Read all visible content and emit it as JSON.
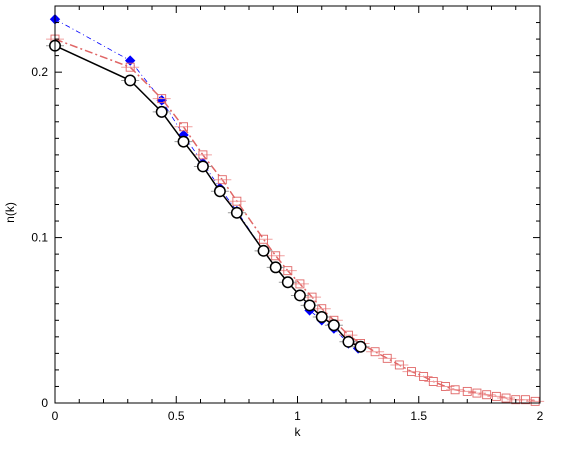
{
  "chart_data": {
    "type": "line",
    "title": "",
    "xlabel": "k",
    "ylabel": "n(k)",
    "xlim": [
      0,
      2
    ],
    "ylim": [
      0,
      0.24
    ],
    "xticks": [
      0,
      0.5,
      1,
      1.5,
      2
    ],
    "xtick_labels": [
      "0",
      "0.5",
      "1",
      "1.5",
      "2"
    ],
    "yticks": [
      0,
      0.1,
      0.2
    ],
    "ytick_labels": [
      "0",
      "0.1",
      "0.2"
    ],
    "grid": false,
    "legend": "none",
    "series": [
      {
        "marker": "diamond",
        "color": "#0000ff",
        "line": "thin-dash-dot",
        "x": [
          0,
          0.31,
          0.44,
          0.53,
          0.61,
          0.68,
          0.75,
          0.86,
          0.91,
          0.96,
          1.01,
          1.05,
          1.1,
          1.15,
          1.21,
          1.25
        ],
        "y": [
          0.232,
          0.207,
          0.183,
          0.162,
          0.145,
          0.13,
          0.116,
          0.092,
          0.082,
          0.073,
          0.065,
          0.056,
          0.05,
          0.045,
          0.036,
          0.033
        ]
      },
      {
        "marker": "open-square",
        "color": "#e06666",
        "line": "dash-dot",
        "x": [
          0,
          0.31,
          0.44,
          0.53,
          0.61,
          0.69,
          0.75,
          0.86,
          0.91,
          0.96,
          1.01,
          1.06,
          1.1,
          1.15,
          1.21,
          1.26,
          1.32,
          1.37,
          1.42,
          1.47,
          1.52,
          1.56,
          1.61,
          1.65,
          1.7,
          1.74,
          1.78,
          1.82,
          1.86,
          1.9,
          1.94,
          1.98
        ],
        "y": [
          0.22,
          0.203,
          0.184,
          0.167,
          0.15,
          0.135,
          0.122,
          0.099,
          0.089,
          0.08,
          0.072,
          0.064,
          0.057,
          0.05,
          0.041,
          0.036,
          0.031,
          0.027,
          0.023,
          0.019,
          0.016,
          0.013,
          0.01,
          0.008,
          0.007,
          0.006,
          0.005,
          0.004,
          0.003,
          0.002,
          0.002,
          0.001
        ]
      },
      {
        "marker": "open-circle",
        "color": "#000000",
        "line": "solid",
        "x": [
          0,
          0.31,
          0.44,
          0.53,
          0.61,
          0.68,
          0.75,
          0.86,
          0.91,
          0.96,
          1.01,
          1.05,
          1.1,
          1.15,
          1.21,
          1.26
        ],
        "y": [
          0.216,
          0.195,
          0.176,
          0.158,
          0.143,
          0.128,
          0.115,
          0.092,
          0.082,
          0.073,
          0.065,
          0.059,
          0.052,
          0.047,
          0.037,
          0.034
        ]
      }
    ]
  }
}
